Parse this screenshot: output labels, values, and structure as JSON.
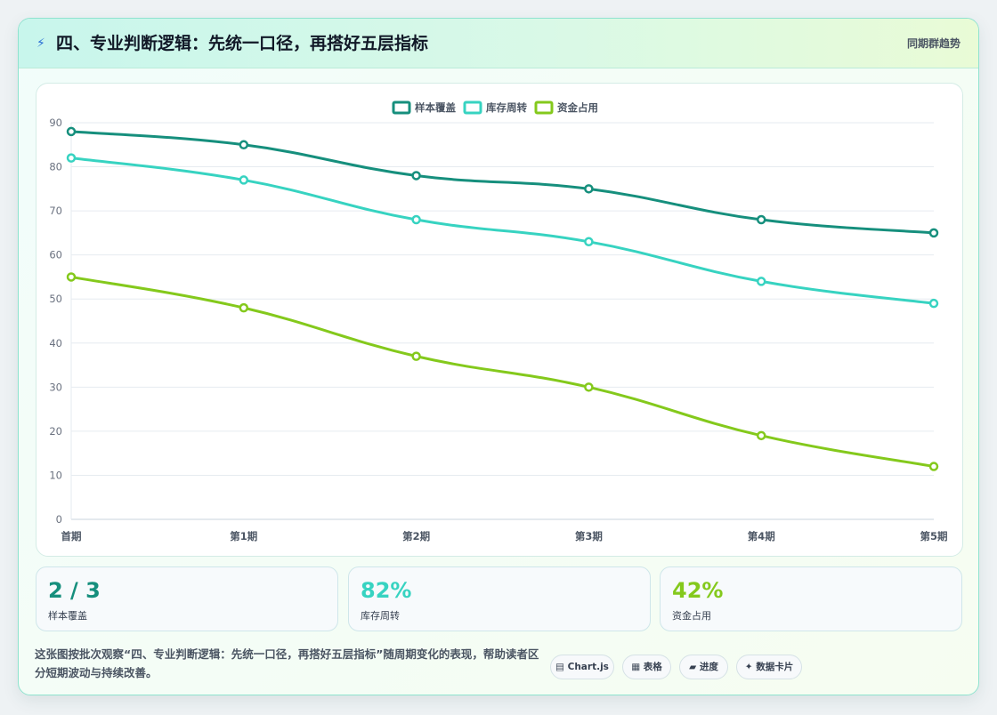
{
  "header": {
    "icon": "bolt-icon",
    "title": "四、专业判断逻辑：先统一口径，再搭好五层指标",
    "right_label": "同期群趋势"
  },
  "chart_data": {
    "type": "line",
    "categories": [
      "首期",
      "第1期",
      "第2期",
      "第3期",
      "第4期",
      "第5期"
    ],
    "series": [
      {
        "name": "样本覆盖",
        "color": "#168f7d",
        "values": [
          88,
          85,
          78,
          75,
          68,
          65
        ]
      },
      {
        "name": "库存周转",
        "color": "#37d3c1",
        "values": [
          82,
          77,
          68,
          63,
          54,
          49
        ]
      },
      {
        "name": "资金占用",
        "color": "#84c91c",
        "values": [
          55,
          48,
          37,
          30,
          19,
          12
        ]
      }
    ],
    "ylim": [
      0,
      90
    ],
    "yticks": [
      0,
      10,
      20,
      30,
      40,
      50,
      60,
      70,
      80,
      90
    ],
    "legend": "top-center",
    "grid": true
  },
  "stats": [
    {
      "value": "2 / 3",
      "label": "样本覆盖",
      "color": "#168f7d"
    },
    {
      "value": "82%",
      "label": "库存周转",
      "color": "#37d3c1"
    },
    {
      "value": "42%",
      "label": "资金占用",
      "color": "#84c91c"
    }
  ],
  "description": "这张图按批次观察“四、专业判断逻辑：先统一口径，再搭好五层指标”随周期变化的表现，帮助读者区分短期波动与持续改善。",
  "pills": [
    {
      "icon": "chart-icon",
      "glyph": "▤",
      "label": "Chart.js"
    },
    {
      "icon": "table-icon",
      "glyph": "▦",
      "label": "表格"
    },
    {
      "icon": "progress-icon",
      "glyph": "▰",
      "label": "进度"
    },
    {
      "icon": "datacard-icon",
      "glyph": "✦",
      "label": "数据卡片"
    }
  ]
}
